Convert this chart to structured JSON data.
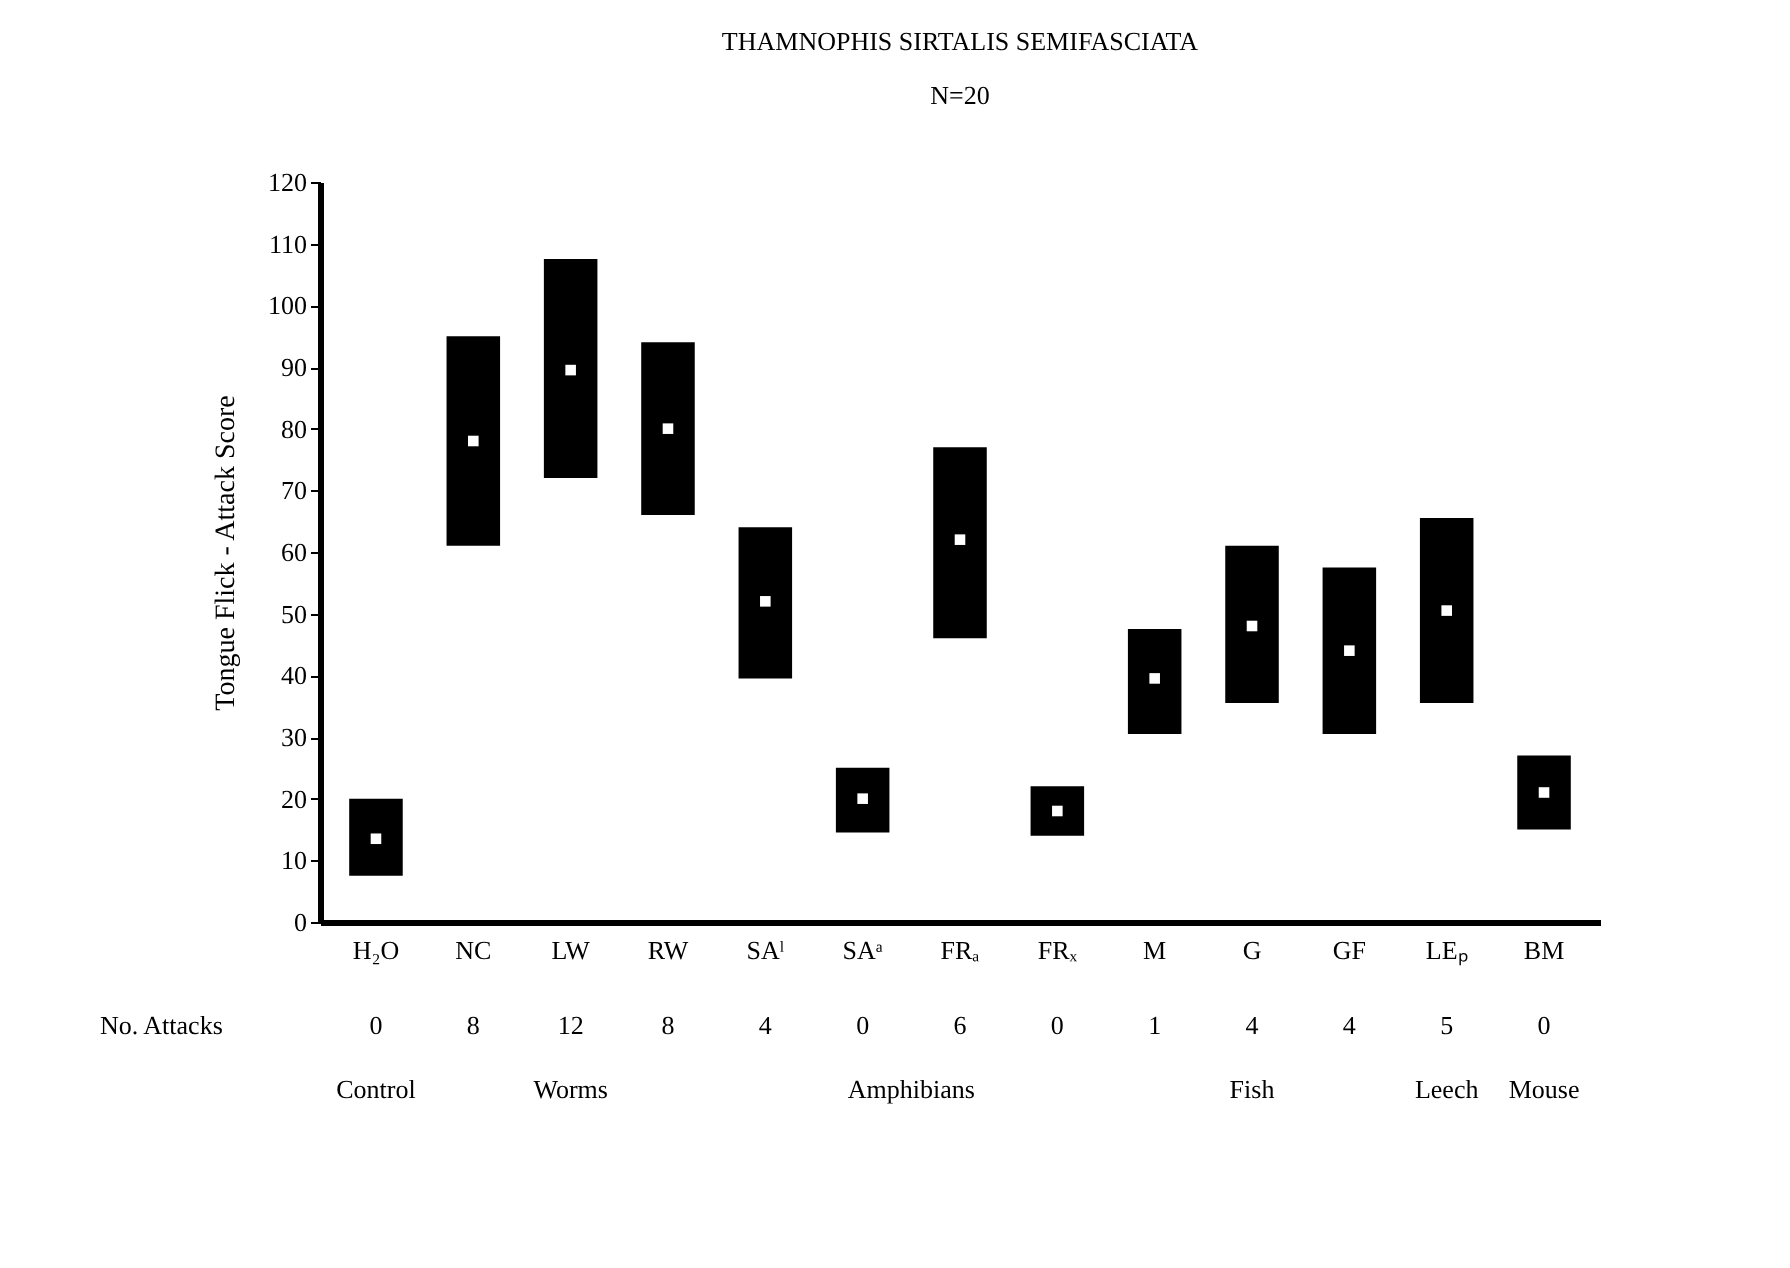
{
  "chart_data": {
    "type": "bar",
    "title": "THAMNOPHIS SIRTALIS SEMIFASCIATA",
    "subtitle": "N=20",
    "ylabel": "Tongue Flick - Attack Score",
    "categories": [
      "H₂O",
      "NC",
      "LW",
      "RW",
      "SAˡ",
      "SAᵃ",
      "FRₐ",
      "FRₓ",
      "M",
      "G",
      "GF",
      "LEₚ",
      "BM"
    ],
    "series": [
      {
        "color": "#000000",
        "base": [
          7.5,
          61,
          72,
          66,
          39.5,
          14.5,
          46,
          14,
          30.5,
          35.5,
          30.5,
          35.5,
          15
        ],
        "values": [
          12.5,
          34,
          35.5,
          28,
          24.5,
          10.5,
          31,
          8,
          17,
          25.5,
          27,
          30,
          12
        ]
      },
      {
        "type": "scatter",
        "color": "#ffffff",
        "marker": "square",
        "x": [
          "H₂O",
          "NC",
          "LW",
          "RW",
          "SAˡ",
          "SAᵃ",
          "FRₐ",
          "FRₓ",
          "M",
          "G",
          "GF",
          "LEₚ",
          "BM"
        ],
        "values": [
          13.5,
          78,
          89.5,
          80,
          52,
          20,
          62,
          18,
          39.5,
          48,
          44,
          50.5,
          21
        ]
      }
    ],
    "ylim": [
      0,
      120
    ],
    "yticks": [
      0,
      10,
      20,
      30,
      40,
      50,
      60,
      70,
      80,
      90,
      100,
      110,
      120
    ],
    "grid": false,
    "annotations": [
      "No. Attacks",
      "0",
      "8",
      "12",
      "8",
      "4",
      "0",
      "6",
      "0",
      "1",
      "4",
      "4",
      "5",
      "0",
      "Control",
      "Worms",
      "Amphibians",
      "Fish",
      "Leech",
      "Mouse"
    ]
  }
}
